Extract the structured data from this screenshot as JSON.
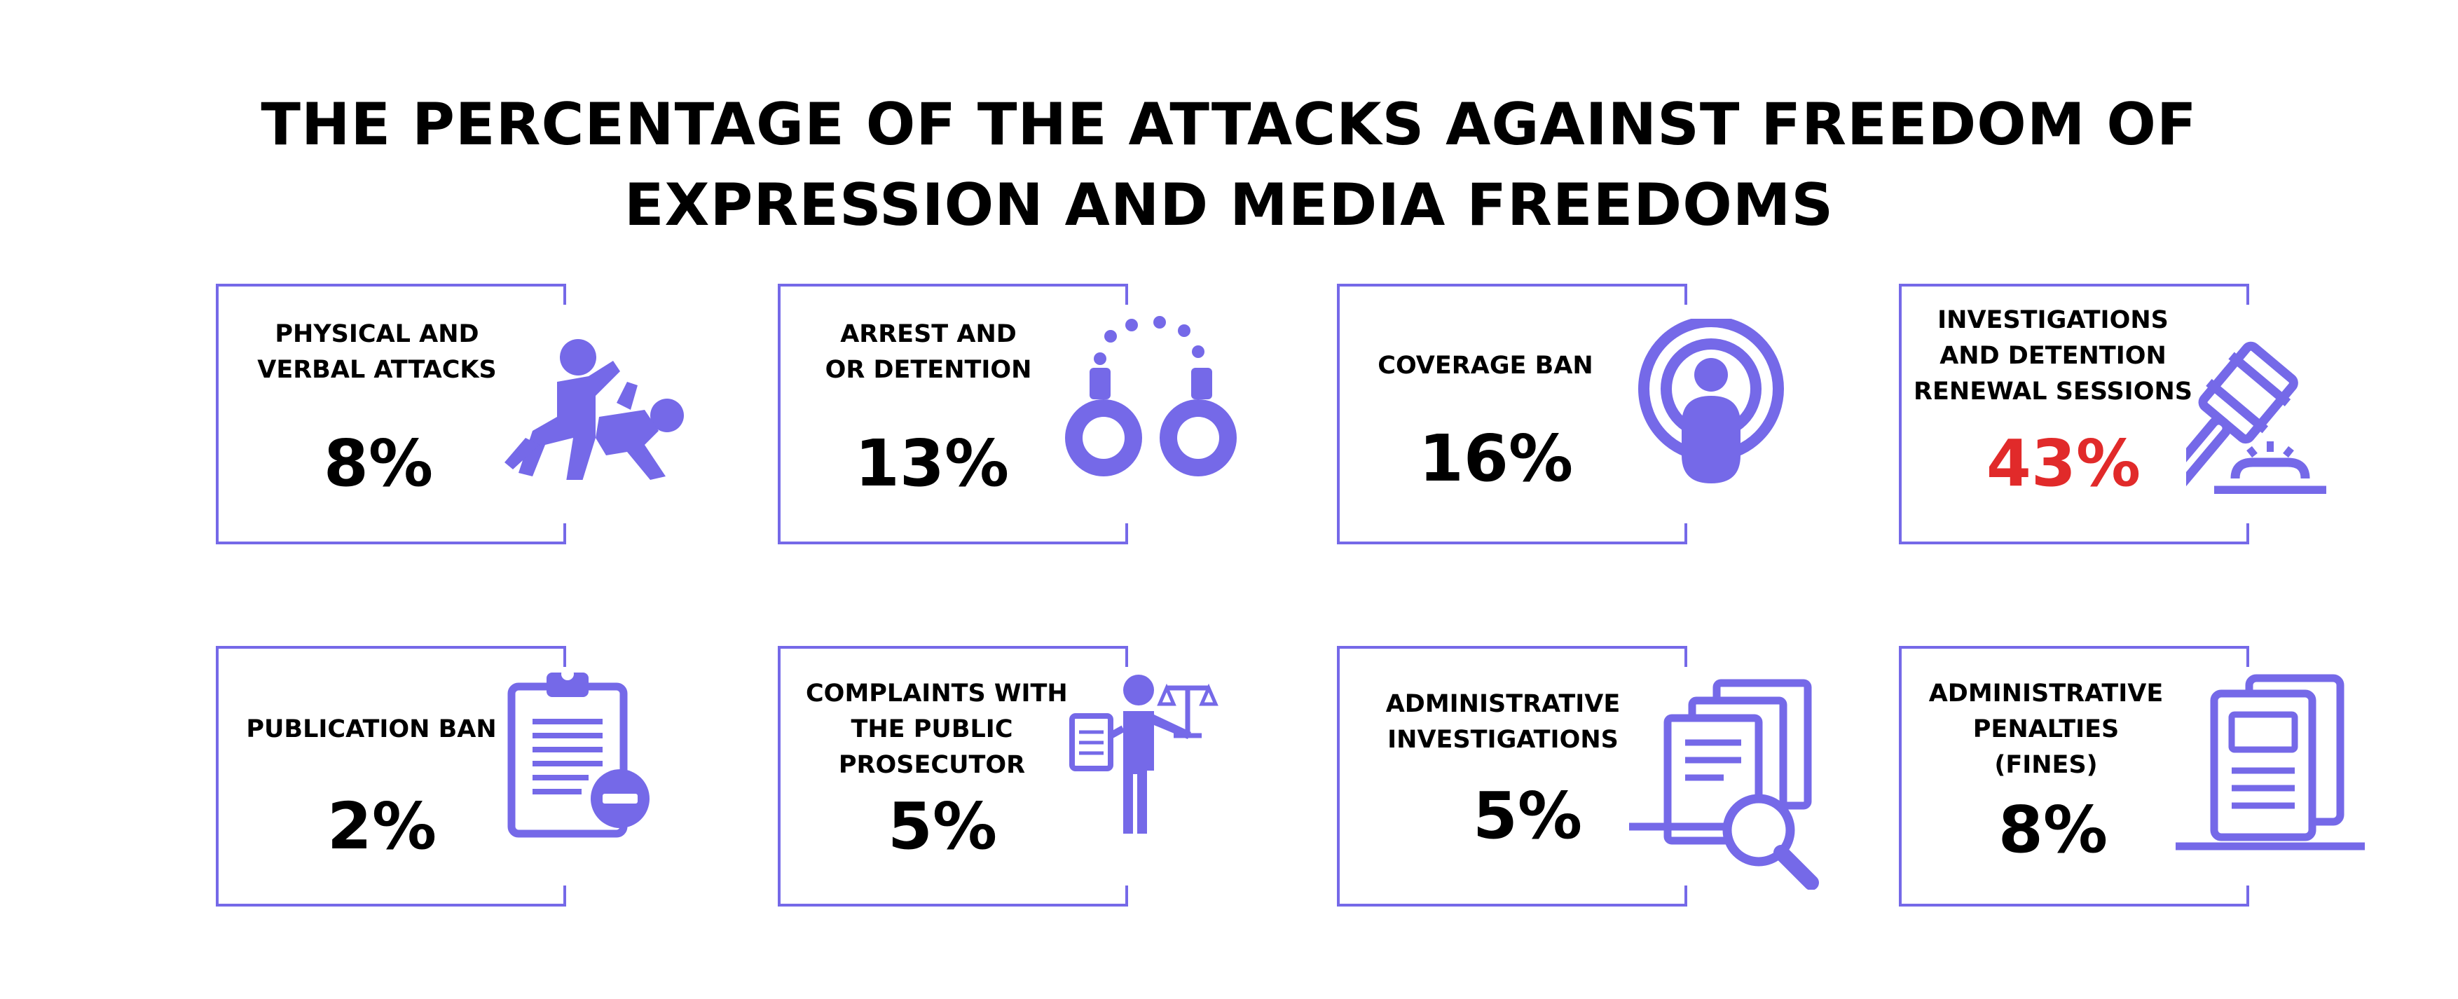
{
  "title_line1": "THE PERCENTAGE OF THE ATTACKS AGAINST FREEDOM OF",
  "title_line2": "EXPRESSION AND MEDIA FREEDOMS",
  "colors": {
    "accent": "#7569e8",
    "highlight": "#e12a2a",
    "text": "#000000"
  },
  "chart_data": {
    "type": "table",
    "title": "THE PERCENTAGE OF THE ATTACKS AGAINST FREEDOM OF EXPRESSION AND MEDIA FREEDOMS",
    "categories": [
      "PHYSICAL AND VERBAL ATTACKS",
      "ARREST AND OR DETENTION",
      "COVERAGE BAN",
      "INVESTIGATIONS AND DETENTION RENEWAL SESSIONS",
      "PUBLICATION BAN",
      "COMPLAINTS WITH THE PUBLIC PROSECUTOR",
      "ADMINISTRATIVE INVESTIGATIONS",
      "ADMINISTRATIVE PENALTIES (FINES)"
    ],
    "values": [
      8,
      13,
      16,
      43,
      2,
      5,
      5,
      8
    ],
    "unit": "%"
  },
  "cards": [
    {
      "label_lines": [
        "PHYSICAL AND",
        "VERBAL ATTACKS"
      ],
      "value_text": "8%",
      "icon": "fighting-people-icon"
    },
    {
      "label_lines": [
        "ARREST AND",
        "OR DETENTION"
      ],
      "value_text": "13%",
      "icon": "handcuffs-icon"
    },
    {
      "label_lines": [
        "COVERAGE BAN"
      ],
      "value_text": "16%",
      "icon": "broadcast-person-icon"
    },
    {
      "label_lines": [
        "INVESTIGATIONS",
        "AND DETENTION",
        "RENEWAL SESSIONS"
      ],
      "value_text": "43%",
      "icon": "gavel-icon"
    },
    {
      "label_lines": [
        "PUBLICATION BAN"
      ],
      "value_text": "2%",
      "icon": "clipboard-minus-icon"
    },
    {
      "label_lines": [
        "COMPLAINTS WITH",
        "THE PUBLIC",
        "PROSECUTOR"
      ],
      "value_text": "5%",
      "icon": "prosecutor-scales-icon"
    },
    {
      "label_lines": [
        "ADMINISTRATIVE",
        "INVESTIGATIONS"
      ],
      "value_text": "5%",
      "icon": "documents-magnifier-icon"
    },
    {
      "label_lines": [
        "ADMINISTRATIVE",
        "PENALTIES",
        "(FINES)"
      ],
      "value_text": "8%",
      "icon": "document-stack-icon"
    }
  ]
}
